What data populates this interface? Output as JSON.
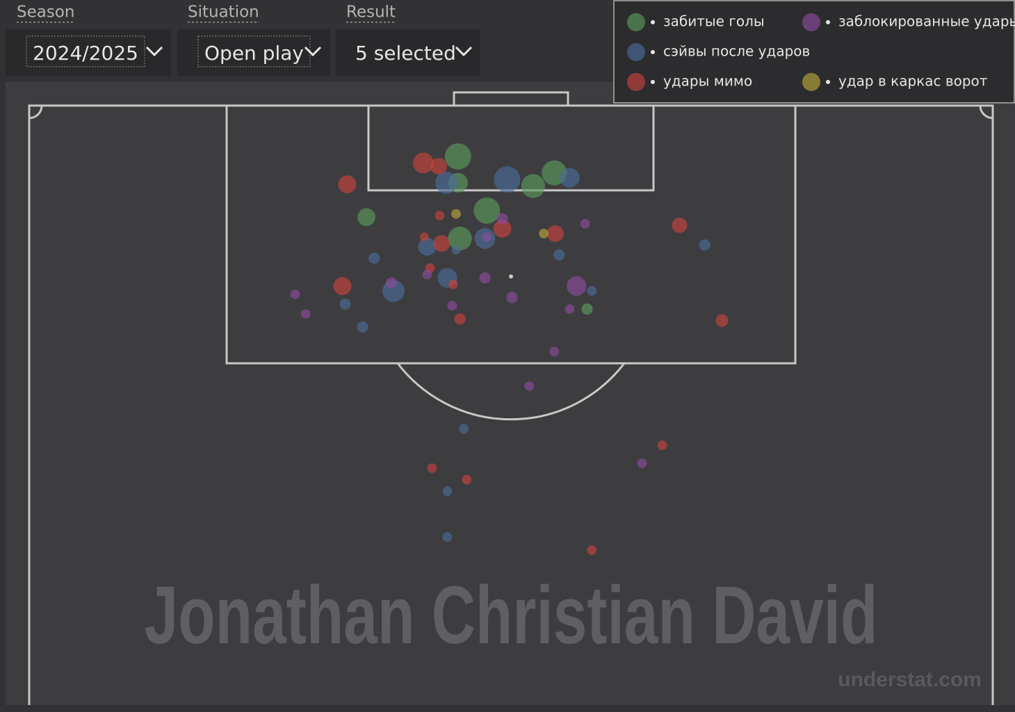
{
  "filters": [
    {
      "label": "Season",
      "value": "2024/2025"
    },
    {
      "label": "Situation",
      "value": "Open play"
    },
    {
      "label": "Result",
      "value": "5 selected"
    }
  ],
  "chart_data": {
    "type": "scatter",
    "title": "Jonathan Christian David",
    "source": "understat.com",
    "series": [
      {
        "name": "забитые голы",
        "color": "#5a9a5c",
        "x": [
          0.445,
          0.445,
          0.475,
          0.447,
          0.523,
          0.545,
          0.35,
          0.579
        ],
        "y": [
          0.969,
          0.953,
          0.936,
          0.919,
          0.951,
          0.959,
          0.932,
          0.876
        ],
        "sizes": [
          0.43,
          0.27,
          0.43,
          0.37,
          0.37,
          0.4,
          0.23,
          0.07
        ]
      },
      {
        "name": "сэйвы после ударов",
        "color": "#4a6b98",
        "x": [
          0.433,
          0.496,
          0.561,
          0.413,
          0.473,
          0.378,
          0.434,
          0.358,
          0.328,
          0.346,
          0.55,
          0.584,
          0.701,
          0.443,
          0.451,
          0.434,
          0.434
        ],
        "y": [
          0.953,
          0.955,
          0.956,
          0.914,
          0.919,
          0.887,
          0.895,
          0.907,
          0.879,
          0.865,
          0.909,
          0.887,
          0.915,
          0.912,
          0.803,
          0.765,
          0.737
        ],
        "sizes": [
          0.33,
          0.43,
          0.27,
          0.23,
          0.3,
          0.33,
          0.27,
          0.07,
          0.07,
          0.07,
          0.07,
          0.03,
          0.07,
          0.01,
          0.03,
          0.03,
          0.03
        ]
      },
      {
        "name": "удары мимо",
        "color": "#c8423d",
        "x": [
          0.409,
          0.425,
          0.33,
          0.426,
          0.491,
          0.546,
          0.428,
          0.41,
          0.416,
          0.325,
          0.44,
          0.447,
          0.675,
          0.719,
          0.657,
          0.418,
          0.454,
          0.584
        ],
        "y": [
          0.965,
          0.963,
          0.952,
          0.933,
          0.925,
          0.922,
          0.916,
          0.92,
          0.901,
          0.89,
          0.891,
          0.87,
          0.927,
          0.869,
          0.793,
          0.779,
          0.772,
          0.729
        ],
        "sizes": [
          0.3,
          0.2,
          0.23,
          0.03,
          0.23,
          0.2,
          0.2,
          0.01,
          0.03,
          0.23,
          0.03,
          0.07,
          0.17,
          0.1,
          0.03,
          0.03,
          0.03,
          0.03
        ]
      },
      {
        "name": "заблокированные удары",
        "color": "#8c4c9c",
        "x": [
          0.491,
          0.577,
          0.475,
          0.413,
          0.376,
          0.473,
          0.568,
          0.439,
          0.501,
          0.561,
          0.276,
          0.287,
          0.545,
          0.519,
          0.636
        ],
        "y": [
          0.931,
          0.928,
          0.92,
          0.897,
          0.892,
          0.895,
          0.89,
          0.878,
          0.883,
          0.876,
          0.885,
          0.873,
          0.85,
          0.829,
          0.782
        ],
        "sizes": [
          0.07,
          0.03,
          0.03,
          0.03,
          0.07,
          0.07,
          0.27,
          0.03,
          0.07,
          0.03,
          0.03,
          0.03,
          0.03,
          0.03,
          0.03
        ]
      },
      {
        "name": "удар в каркас ворот",
        "color": "#b8a73a",
        "x": [
          0.443,
          0.534
        ],
        "y": [
          0.934,
          0.922
        ],
        "sizes": [
          0.03,
          0.03
        ]
      }
    ]
  }
}
